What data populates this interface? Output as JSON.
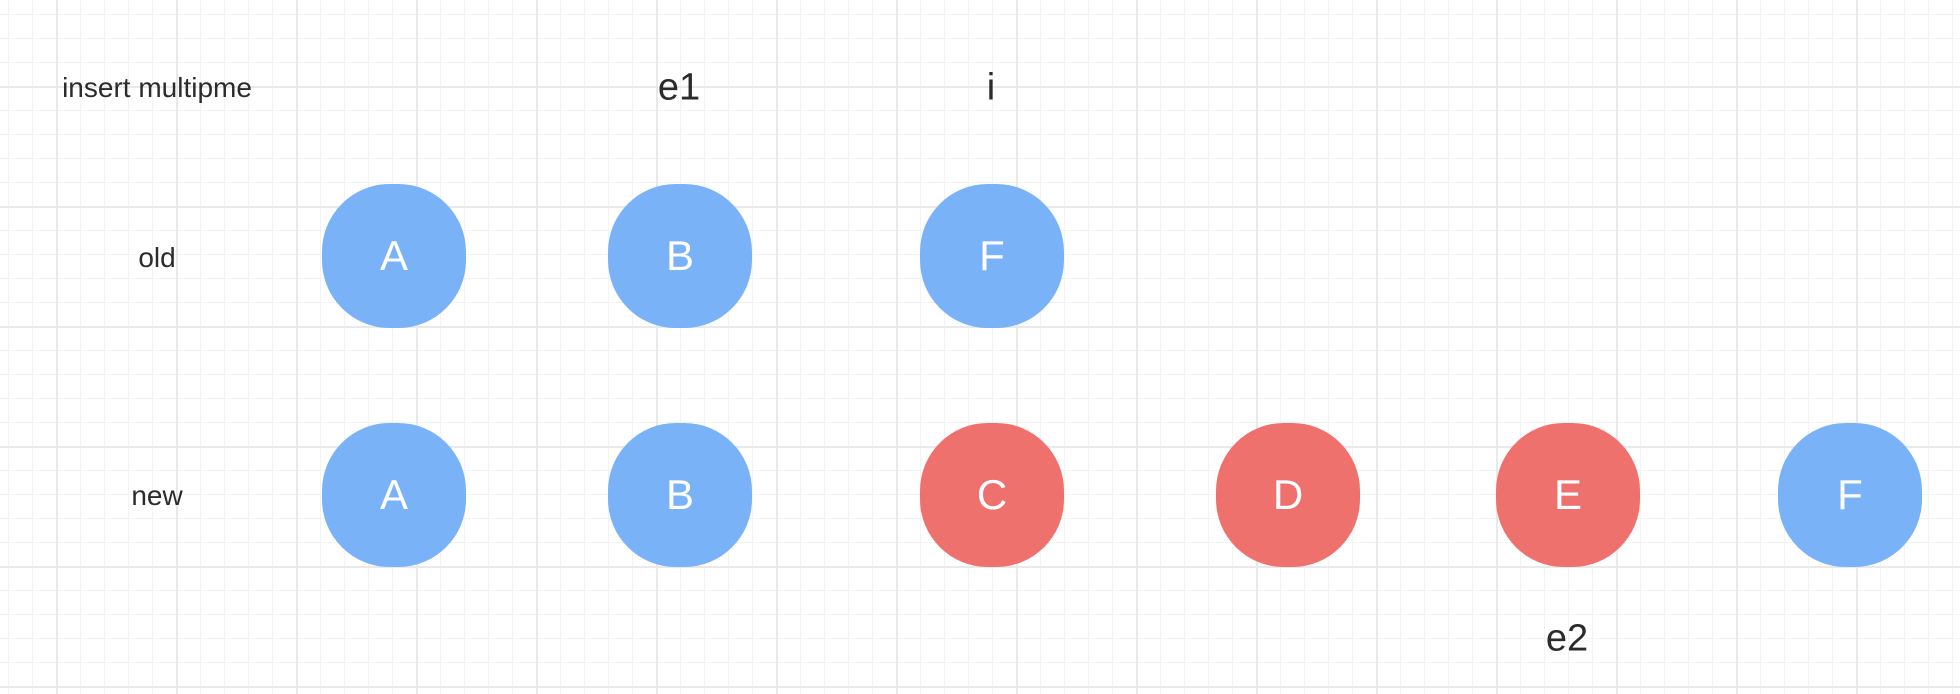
{
  "title": "insert multipme",
  "row_labels": {
    "old": "old",
    "new": "new"
  },
  "pointers": {
    "e1": "e1",
    "i": "i",
    "e2": "e2"
  },
  "colors": {
    "unchanged": "#7ab2f8",
    "inserted": "#ef716d"
  },
  "old_nodes": [
    {
      "label": "A",
      "status": "unchanged"
    },
    {
      "label": "B",
      "status": "unchanged"
    },
    {
      "label": "F",
      "status": "unchanged"
    }
  ],
  "new_nodes": [
    {
      "label": "A",
      "status": "unchanged"
    },
    {
      "label": "B",
      "status": "unchanged"
    },
    {
      "label": "C",
      "status": "inserted"
    },
    {
      "label": "D",
      "status": "inserted"
    },
    {
      "label": "E",
      "status": "inserted"
    },
    {
      "label": "F",
      "status": "unchanged"
    }
  ]
}
